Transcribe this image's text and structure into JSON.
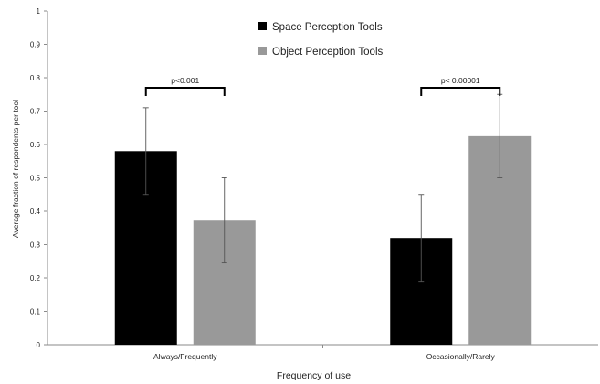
{
  "chart_data": {
    "type": "bar",
    "xlabel": "Frequency of use",
    "ylabel": "Average fraction of respondents per tool",
    "ylim": [
      0,
      1
    ],
    "yticks": [
      "0",
      "0.1",
      "0.2",
      "0.3",
      "0.4",
      "0.5",
      "0.6",
      "0.7",
      "0.8",
      "0.9",
      "1"
    ],
    "grid": false,
    "legend_position": "top-center",
    "categories": [
      "Always/Frequently",
      "Occasionally/Rarely"
    ],
    "series": [
      {
        "name": "Space Perception Tools",
        "color": "#000000",
        "values": [
          0.58,
          0.32
        ],
        "error_low": [
          0.45,
          0.19
        ],
        "error_high": [
          0.71,
          0.45
        ]
      },
      {
        "name": "Object Perception Tools",
        "color": "#999999",
        "values": [
          0.372,
          0.625
        ],
        "error_low": [
          0.245,
          0.5
        ],
        "error_high": [
          0.5,
          0.75
        ]
      }
    ],
    "annotations": [
      {
        "label": "p<0.001",
        "category_index": 0,
        "y": 0.77
      },
      {
        "label": "p< 0.00001",
        "category_index": 1,
        "y": 0.77
      }
    ]
  }
}
